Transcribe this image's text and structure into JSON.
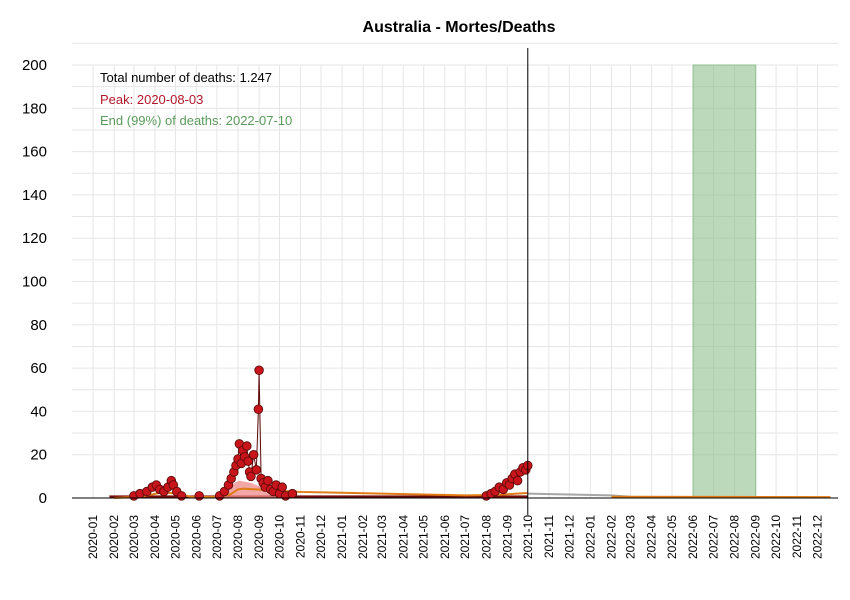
{
  "chart_data": {
    "type": "line",
    "title": "Australia - Mortes/Deaths",
    "xlabel": "",
    "ylabel": "",
    "ylim": [
      0,
      200
    ],
    "y_ticks": [
      0,
      20,
      40,
      60,
      80,
      100,
      120,
      140,
      160,
      180,
      200
    ],
    "x_range": [
      "2019-12-01",
      "2022-12-31"
    ],
    "x_ticks": [
      "2020-01",
      "2020-02",
      "2020-03",
      "2020-04",
      "2020-05",
      "2020-06",
      "2020-07",
      "2020-08",
      "2020-09",
      "2020-10",
      "2020-11",
      "2020-12",
      "2021-01",
      "2021-02",
      "2021-03",
      "2021-04",
      "2021-05",
      "2021-06",
      "2021-07",
      "2021-08",
      "2021-09",
      "2021-10",
      "2021-11",
      "2021-12",
      "2022-01",
      "2022-02",
      "2022-03",
      "2022-04",
      "2022-05",
      "2022-06",
      "2022-07",
      "2022-08",
      "2022-09",
      "2022-10",
      "2022-11",
      "2022-12"
    ],
    "grid": true,
    "annotations": {
      "total": "Total number of deaths: 1.247",
      "peak": "Peak: 2020-08-03",
      "end": "End (99%) of deaths: 2022-07-10"
    },
    "vline_date": "2021-10-01",
    "shaded_region": {
      "start": "2022-06-01",
      "end": "2022-09-01",
      "ymin": 0,
      "ymax": 200
    },
    "series": [
      {
        "kind": "daily_points",
        "points": [
          [
            "2020-02-15",
            0
          ],
          [
            "2020-03-01",
            1
          ],
          [
            "2020-03-10",
            2
          ],
          [
            "2020-03-20",
            3
          ],
          [
            "2020-03-28",
            5
          ],
          [
            "2020-04-03",
            6
          ],
          [
            "2020-04-08",
            4
          ],
          [
            "2020-04-14",
            3
          ],
          [
            "2020-04-20",
            5
          ],
          [
            "2020-04-25",
            8
          ],
          [
            "2020-04-28",
            6
          ],
          [
            "2020-05-03",
            3
          ],
          [
            "2020-05-10",
            1
          ],
          [
            "2020-05-20",
            0
          ],
          [
            "2020-06-05",
            1
          ],
          [
            "2020-06-20",
            0
          ],
          [
            "2020-07-05",
            1
          ],
          [
            "2020-07-12",
            3
          ],
          [
            "2020-07-18",
            6
          ],
          [
            "2020-07-22",
            9
          ],
          [
            "2020-07-26",
            12
          ],
          [
            "2020-07-29",
            15
          ],
          [
            "2020-08-01",
            18
          ],
          [
            "2020-08-03",
            25
          ],
          [
            "2020-08-06",
            16
          ],
          [
            "2020-08-08",
            22
          ],
          [
            "2020-08-11",
            19
          ],
          [
            "2020-08-14",
            24
          ],
          [
            "2020-08-16",
            17
          ],
          [
            "2020-08-18",
            12
          ],
          [
            "2020-08-20",
            10
          ],
          [
            "2020-08-24",
            20
          ],
          [
            "2020-08-28",
            13
          ],
          [
            "2020-08-31",
            41
          ],
          [
            "2020-09-01",
            59
          ],
          [
            "2020-09-04",
            9
          ],
          [
            "2020-09-07",
            7
          ],
          [
            "2020-09-10",
            5
          ],
          [
            "2020-09-14",
            8
          ],
          [
            "2020-09-18",
            4
          ],
          [
            "2020-09-22",
            3
          ],
          [
            "2020-09-26",
            6
          ],
          [
            "2020-10-01",
            2
          ],
          [
            "2020-10-05",
            5
          ],
          [
            "2020-10-10",
            1
          ],
          [
            "2020-10-20",
            2
          ],
          [
            "2020-11-01",
            0
          ],
          [
            "2021-08-01",
            1
          ],
          [
            "2021-08-08",
            2
          ],
          [
            "2021-08-14",
            3
          ],
          [
            "2021-08-20",
            5
          ],
          [
            "2021-08-26",
            4
          ],
          [
            "2021-08-31",
            7
          ],
          [
            "2021-09-04",
            6
          ],
          [
            "2021-09-08",
            9
          ],
          [
            "2021-09-12",
            11
          ],
          [
            "2021-09-16",
            8
          ],
          [
            "2021-09-20",
            12
          ],
          [
            "2021-09-24",
            14
          ],
          [
            "2021-09-28",
            13
          ],
          [
            "2021-10-01",
            15
          ]
        ]
      },
      {
        "kind": "rolling_mean",
        "color": "#e07b16"
      },
      {
        "kind": "projection",
        "color": "#a6a6a6"
      }
    ],
    "colors": {
      "points_fill": "#c8151b",
      "points_stroke": "#5e0a0a",
      "baseline_band": "#7a0e0e",
      "area_fill": "#f08a8a",
      "rolling_mean": "#e07b16",
      "projection": "#a6a6a6",
      "vline": "#000000",
      "shade": "#8fbf8f",
      "total_text": "#000000",
      "peak_text": "#b2182b",
      "end_text": "#5a9a5a"
    }
  }
}
